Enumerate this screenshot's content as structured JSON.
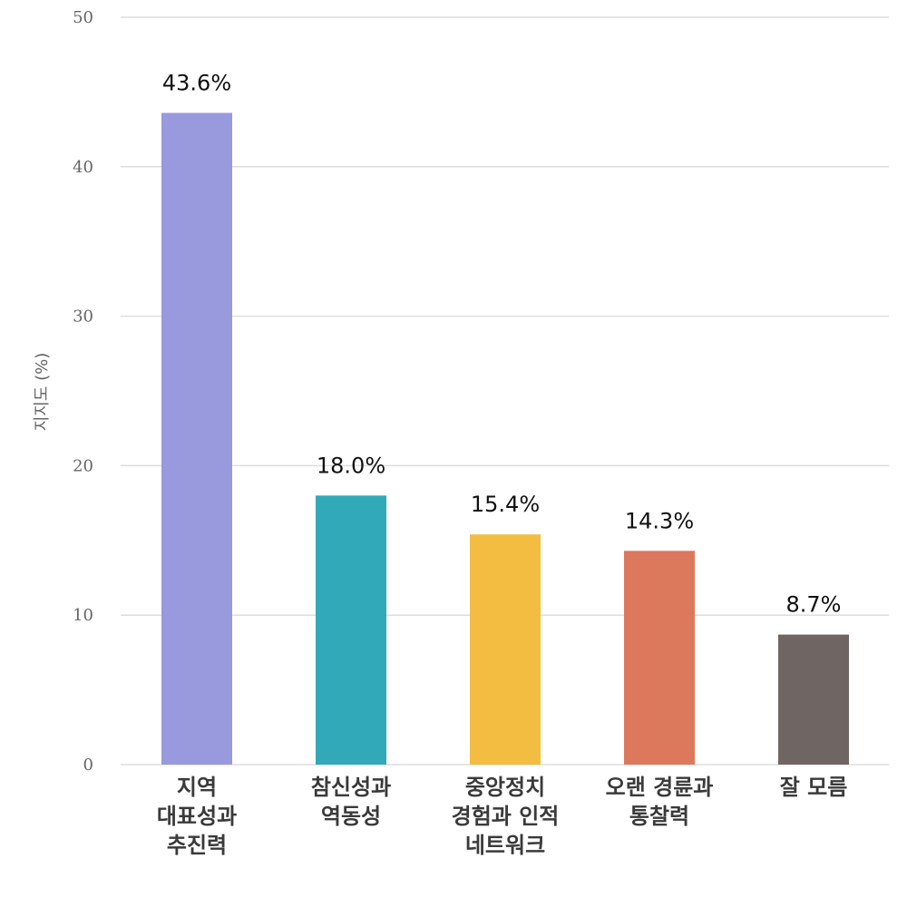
{
  "chart_data": {
    "type": "bar",
    "ylabel": "지지도 (%)",
    "ylim": [
      0,
      50
    ],
    "yticks": [
      0,
      10,
      20,
      30,
      40,
      50
    ],
    "grid": true,
    "categories": [
      [
        "지역",
        "대표성과",
        "추진력"
      ],
      [
        "참신성과",
        "역동성"
      ],
      [
        "중앙정치",
        "경험과 인적",
        "네트워크"
      ],
      [
        "오랜 경륜과",
        "통찰력"
      ],
      [
        "잘 모름"
      ]
    ],
    "values": [
      43.6,
      18.0,
      15.4,
      14.3,
      8.7
    ],
    "data_labels": [
      "43.6%",
      "18.0%",
      "15.4%",
      "14.3%",
      "8.7%"
    ],
    "colors": [
      "#9999dd",
      "#31a9b8",
      "#f3bd41",
      "#dc785c",
      "#6f6562"
    ]
  }
}
